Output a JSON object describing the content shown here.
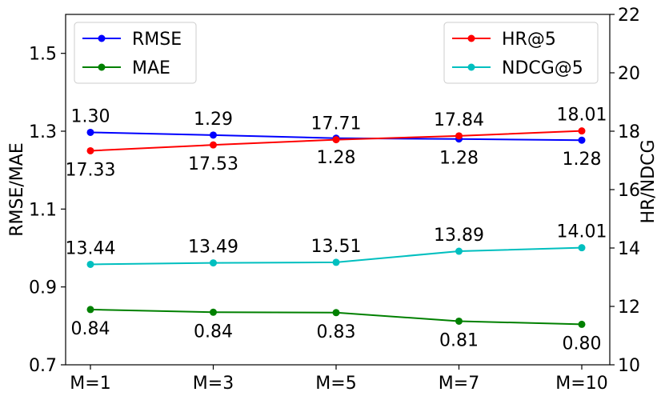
{
  "chart_data": {
    "type": "line",
    "categories": [
      "M=1",
      "M=3",
      "M=5",
      "M=7",
      "M=10"
    ],
    "left_axis": {
      "label": "RMSE/MAE",
      "ylim": [
        0.7,
        1.6
      ],
      "ticks": [
        0.7,
        0.9,
        1.1,
        1.3,
        1.5
      ],
      "tick_labels": [
        "0.7",
        "0.9",
        "1.1",
        "1.3",
        "1.5"
      ]
    },
    "right_axis": {
      "label": "HR/NDCG",
      "ylim": [
        10,
        22
      ],
      "ticks": [
        10,
        12,
        14,
        16,
        18,
        20,
        22
      ],
      "tick_labels": [
        "10",
        "12",
        "14",
        "16",
        "18",
        "20",
        "22"
      ]
    },
    "series": [
      {
        "name": "RMSE",
        "axis": "left",
        "color": "#0000ff",
        "values": [
          1.297,
          1.29,
          1.282,
          1.28,
          1.277
        ],
        "labels": [
          "1.30",
          "1.29",
          "1.28",
          "1.28",
          "1.28"
        ],
        "label_pos": [
          "above",
          "above",
          "below",
          "below",
          "below"
        ]
      },
      {
        "name": "MAE",
        "axis": "left",
        "color": "#008000",
        "values": [
          0.842,
          0.835,
          0.834,
          0.812,
          0.804
        ],
        "labels": [
          "0.84",
          "0.84",
          "0.83",
          "0.81",
          "0.80"
        ],
        "label_pos": [
          "below",
          "below",
          "below",
          "below",
          "below"
        ]
      },
      {
        "name": "HR@5",
        "axis": "right",
        "color": "#ff0000",
        "values": [
          17.33,
          17.53,
          17.71,
          17.84,
          18.01
        ],
        "labels": [
          "17.33",
          "17.53",
          "17.71",
          "17.84",
          "18.01"
        ],
        "label_pos": [
          "below",
          "below",
          "above",
          "above",
          "above"
        ]
      },
      {
        "name": "NDCG@5",
        "axis": "right",
        "color": "#00bfbf",
        "values": [
          13.44,
          13.49,
          13.51,
          13.89,
          14.01
        ],
        "labels": [
          "13.44",
          "13.49",
          "13.51",
          "13.89",
          "14.01"
        ],
        "label_pos": [
          "above",
          "above",
          "above",
          "above",
          "above"
        ]
      }
    ],
    "legends": [
      {
        "placement": "top-left",
        "entries": [
          "RMSE",
          "MAE"
        ]
      },
      {
        "placement": "top-right",
        "entries": [
          "HR@5",
          "NDCG@5"
        ]
      }
    ],
    "grid": false
  }
}
